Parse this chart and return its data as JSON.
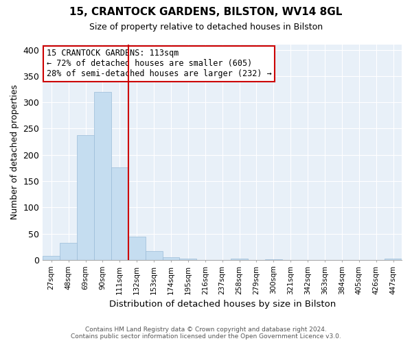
{
  "title": "15, CRANTOCK GARDENS, BILSTON, WV14 8GL",
  "subtitle": "Size of property relative to detached houses in Bilston",
  "xlabel": "Distribution of detached houses by size in Bilston",
  "ylabel": "Number of detached properties",
  "bar_labels": [
    "27sqm",
    "48sqm",
    "69sqm",
    "90sqm",
    "111sqm",
    "132sqm",
    "153sqm",
    "174sqm",
    "195sqm",
    "216sqm",
    "237sqm",
    "258sqm",
    "279sqm",
    "300sqm",
    "321sqm",
    "342sqm",
    "363sqm",
    "384sqm",
    "405sqm",
    "426sqm",
    "447sqm"
  ],
  "bar_values": [
    8,
    32,
    238,
    320,
    176,
    44,
    17,
    5,
    2,
    0,
    0,
    3,
    0,
    1,
    0,
    0,
    0,
    0,
    0,
    0,
    2
  ],
  "bar_color": "#c5ddf0",
  "bar_edge_color": "#9bbcd8",
  "vline_color": "#cc0000",
  "annotation_text": "15 CRANTOCK GARDENS: 113sqm\n← 72% of detached houses are smaller (605)\n28% of semi-detached houses are larger (232) →",
  "annotation_box_color": "white",
  "annotation_box_edge": "#cc0000",
  "ylim": [
    0,
    410
  ],
  "yticks": [
    0,
    50,
    100,
    150,
    200,
    250,
    300,
    350,
    400
  ],
  "footer_line1": "Contains HM Land Registry data © Crown copyright and database right 2024.",
  "footer_line2": "Contains public sector information licensed under the Open Government Licence v3.0.",
  "bg_color": "#e8f0f8"
}
